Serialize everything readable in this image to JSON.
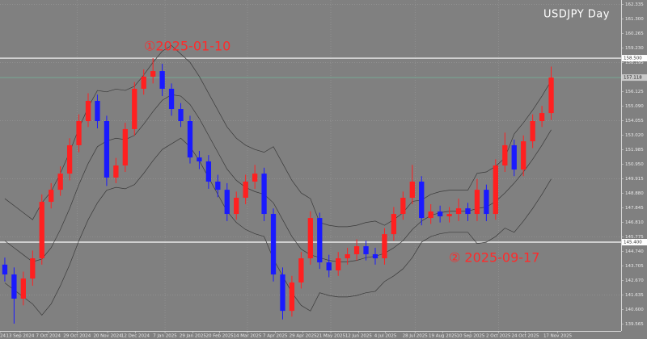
{
  "chart_data": {
    "type": "candlestick",
    "title": "USDJPY  Day",
    "up_color": "#ff2020",
    "down_color": "#1a1aff",
    "band_color": "#3a3a3a",
    "grid": true,
    "open": [
      143.8,
      143.1,
      141.38,
      142.81,
      144.25,
      148.27,
      149.13,
      150.28,
      152.3,
      154.02,
      155.46,
      154.02,
      150.0,
      150.86,
      153.45,
      156.32,
      157.18,
      157.58,
      156.32,
      154.88,
      154.02,
      151.43,
      151.15,
      149.71,
      149.13,
      147.41,
      148.56,
      149.71,
      150.28,
      147.41,
      143.1,
      140.51,
      142.53,
      144.25,
      147.12,
      143.96,
      143.39,
      144.25,
      144.54,
      145.11,
      144.54,
      144.25,
      145.97,
      147.41,
      148.56,
      149.71,
      147.12,
      147.58,
      147.24,
      147.41,
      147.81,
      147.41,
      149.13,
      147.41,
      150.86,
      152.3,
      150.57,
      152.58,
      154.02,
      154.59
    ],
    "high": [
      144.3,
      143.6,
      143.3,
      144.8,
      148.8,
      149.6,
      150.8,
      152.8,
      154.5,
      156.0,
      155.9,
      154.4,
      151.4,
      153.9,
      156.8,
      157.7,
      158.5,
      158.1,
      156.7,
      155.3,
      154.4,
      151.9,
      151.6,
      150.2,
      149.6,
      149.0,
      150.2,
      150.9,
      150.7,
      147.8,
      143.6,
      143.0,
      144.7,
      147.6,
      147.5,
      144.5,
      144.7,
      145.0,
      145.6,
      145.5,
      145.0,
      146.4,
      147.9,
      149.0,
      150.9,
      150.1,
      148.1,
      148.0,
      147.9,
      148.5,
      148.2,
      149.9,
      149.5,
      151.3,
      153.2,
      152.7,
      153.0,
      154.5,
      155.1,
      157.9
    ],
    "low": [
      142.6,
      139.6,
      140.9,
      142.3,
      143.8,
      147.8,
      148.7,
      149.8,
      151.8,
      153.6,
      153.5,
      149.4,
      149.6,
      150.4,
      153.0,
      155.9,
      156.7,
      155.8,
      154.4,
      153.6,
      151.0,
      150.6,
      149.2,
      148.6,
      146.9,
      147.0,
      148.1,
      149.2,
      146.9,
      142.6,
      139.9,
      140.1,
      142.1,
      143.8,
      143.5,
      142.9,
      143.0,
      143.8,
      144.1,
      144.1,
      143.8,
      143.8,
      145.5,
      147.0,
      148.1,
      146.6,
      146.7,
      146.8,
      146.8,
      146.9,
      146.9,
      146.9,
      146.9,
      147.0,
      150.4,
      150.1,
      150.1,
      152.1,
      153.6,
      154.1
    ],
    "close": [
      143.1,
      141.38,
      142.81,
      144.25,
      148.27,
      149.13,
      150.28,
      152.3,
      154.02,
      155.46,
      154.02,
      150.0,
      150.86,
      153.45,
      156.32,
      157.18,
      157.58,
      156.32,
      154.88,
      154.02,
      151.43,
      151.15,
      149.71,
      149.13,
      147.41,
      148.56,
      149.71,
      150.28,
      147.41,
      143.1,
      140.51,
      142.53,
      144.25,
      147.12,
      143.96,
      143.39,
      144.25,
      144.54,
      145.11,
      144.54,
      144.25,
      145.97,
      147.41,
      148.56,
      149.71,
      147.12,
      147.58,
      147.24,
      147.41,
      147.81,
      147.41,
      149.13,
      147.41,
      150.86,
      152.3,
      150.57,
      152.58,
      154.02,
      154.59,
      157.118
    ],
    "upper_band": [
      148.5,
      148.0,
      147.5,
      147.0,
      148.2,
      149.0,
      150.3,
      151.8,
      153.5,
      155.0,
      156.2,
      156.1,
      156.3,
      156.2,
      156.5,
      157.3,
      158.2,
      159.0,
      159.4,
      158.8,
      158.2,
      157.2,
      156.0,
      154.8,
      153.6,
      152.8,
      152.3,
      152.0,
      151.8,
      152.2,
      151.0,
      149.8,
      148.9,
      148.5,
      146.8,
      146.6,
      146.5,
      146.5,
      146.6,
      146.8,
      146.9,
      146.6,
      147.0,
      147.5,
      148.3,
      148.4,
      148.8,
      149.0,
      149.1,
      149.1,
      149.1,
      150.3,
      150.4,
      150.8,
      151.4,
      153.1,
      153.9,
      154.8,
      155.8,
      156.9
    ],
    "middle_band": [
      145.5,
      145.0,
      144.5,
      144.0,
      144.2,
      145.0,
      146.3,
      147.8,
      149.5,
      151.0,
      152.2,
      152.6,
      152.8,
      152.7,
      153.0,
      153.8,
      154.7,
      155.5,
      155.9,
      155.8,
      155.2,
      154.2,
      153.0,
      151.8,
      150.6,
      149.8,
      149.3,
      149.0,
      148.8,
      148.2,
      147.0,
      145.8,
      144.9,
      144.5,
      144.3,
      144.1,
      144.0,
      144.0,
      144.1,
      144.3,
      144.4,
      144.6,
      145.0,
      145.5,
      146.3,
      146.9,
      147.3,
      147.5,
      147.6,
      147.6,
      147.6,
      147.8,
      147.9,
      148.3,
      148.9,
      149.6,
      150.4,
      151.3,
      152.3,
      153.4
    ],
    "lower_band": [
      142.5,
      142.0,
      141.5,
      141.0,
      140.2,
      141.0,
      142.3,
      143.8,
      145.5,
      147.0,
      148.2,
      149.1,
      149.3,
      149.2,
      149.5,
      150.3,
      151.2,
      152.0,
      152.4,
      152.8,
      152.2,
      151.2,
      150.0,
      148.8,
      147.6,
      146.8,
      146.3,
      146.0,
      145.8,
      144.2,
      143.0,
      141.8,
      140.9,
      140.5,
      141.8,
      141.6,
      141.5,
      141.5,
      141.6,
      141.8,
      141.9,
      142.6,
      143.0,
      143.5,
      144.3,
      145.4,
      145.8,
      146.0,
      146.1,
      146.1,
      146.1,
      145.3,
      145.4,
      145.8,
      146.4,
      146.1,
      146.9,
      147.8,
      148.8,
      149.9
    ],
    "xlim": [
      -0.52,
      66.55
    ],
    "ylim": [
      139.08,
      162.64
    ],
    "xticks": [
      {
        "value": -0.52,
        "label": "24"
      },
      {
        "value": 1.66,
        "label": "13 Sep 2024"
      },
      {
        "value": 4.7,
        "label": "7 Oct 2024"
      },
      {
        "value": 7.8,
        "label": "29 Oct 2024"
      },
      {
        "value": 11.1,
        "label": "20 Nov 2024"
      },
      {
        "value": 14.1,
        "label": "12 Dec 2024"
      },
      {
        "value": 17.3,
        "label": "7 Jan 2025"
      },
      {
        "value": 20.3,
        "label": "29 Jan 2025"
      },
      {
        "value": 23.2,
        "label": "20 Feb 2025"
      },
      {
        "value": 26.2,
        "label": "14 Mar 2025"
      },
      {
        "value": 29.2,
        "label": "7 Apr 2025"
      },
      {
        "value": 32.2,
        "label": "29 Apr 2025"
      },
      {
        "value": 35.2,
        "label": "21 May 2025"
      },
      {
        "value": 38.2,
        "label": "12 Jun 2025"
      },
      {
        "value": 41.1,
        "label": "4 Jul 2025"
      },
      {
        "value": 44.3,
        "label": "28 Jul 2025"
      },
      {
        "value": 47.3,
        "label": "19 Aug 2025"
      },
      {
        "value": 50.3,
        "label": "10 Sep 2025"
      },
      {
        "value": 53.3,
        "label": "2 Oct 2025"
      },
      {
        "value": 56.2,
        "label": "24 Oct 2025"
      },
      {
        "value": 59.7,
        "label": "17 Nov 2025"
      }
    ],
    "yticks": [
      139.565,
      {
        "value": 140.6,
        "label": "140.600"
      },
      141.635,
      {
        "value": 142.67,
        "label": "142.670"
      },
      143.705,
      {
        "value": 144.74,
        "label": "144.740"
      },
      145.775,
      {
        "value": 146.81,
        "label": "146.810"
      },
      147.845,
      {
        "value": 148.88,
        "label": "148.880"
      },
      149.915,
      {
        "value": 150.95,
        "label": "150.950"
      },
      151.985,
      {
        "value": 153.02,
        "label": "153.020"
      },
      154.055,
      {
        "value": 155.09,
        "label": "155.090"
      },
      156.125,
      {
        "value": 157.16,
        "label": "157.160"
      },
      158.195,
      {
        "value": 159.23,
        "label": "159.230"
      },
      160.265,
      {
        "value": 161.3,
        "label": "161.300"
      },
      162.335
    ],
    "hlines": [
      {
        "value": 158.5,
        "label": "158.500"
      },
      {
        "value": 145.4,
        "label": "145.400"
      }
    ],
    "current_price": 157.118,
    "annotations": [
      "①2025-01-10",
      "② 2025-09-17"
    ],
    "annotation_color": "#ff2a2a"
  }
}
